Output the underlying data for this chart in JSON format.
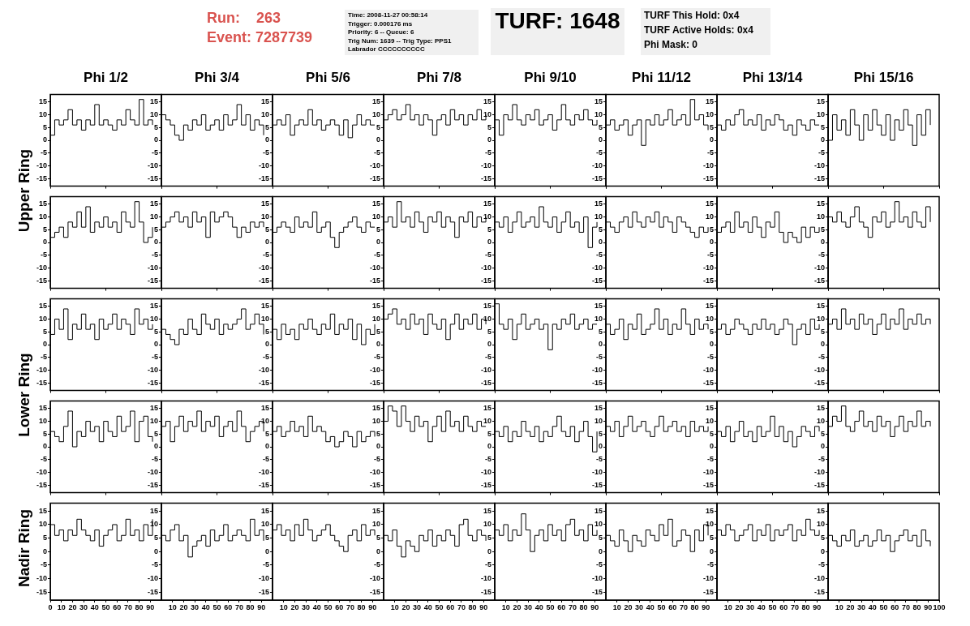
{
  "chart_data": [
    {
      "type": "step",
      "title": "Phi 1/2",
      "ylabel": "Upper Ring",
      "annotations": [
        "Run:    263",
        "Event: 7287739",
        "Time: 2008-11-27 00:58:14",
        "Trigger: 0.000176 ms",
        "Priority: 6 -- Queue: 6",
        "Trig Num: 1639 -- Trig Type: PPS1",
        "Labrador CCCCCCCCCC",
        "TURF: 1648",
        "TURF This Hold: 0x4",
        "TURF Active Holds: 0x4",
        "Phi Mask: 0"
      ],
      "color": "#000000",
      "x": [
        0,
        4,
        8,
        12,
        16,
        20,
        24,
        28,
        32,
        36,
        40,
        44,
        48,
        52,
        56,
        60,
        64,
        68,
        72,
        76,
        80,
        84,
        88,
        92
      ],
      "values": [
        2,
        8,
        6,
        8,
        12,
        6,
        8,
        4,
        8,
        6,
        14,
        6,
        8,
        6,
        4,
        8,
        6,
        12,
        8,
        6,
        16,
        6,
        8,
        6
      ],
      "xlim": [
        0,
        100
      ],
      "ylim": [
        -18,
        18
      ],
      "yticks": [
        -15,
        -10,
        -5,
        0,
        5,
        10,
        15
      ],
      "tick_labels": "y"
    },
    {
      "type": "step",
      "title": "Phi 3/4",
      "color": "#000000",
      "x": [
        0,
        4,
        8,
        12,
        16,
        20,
        24,
        28,
        32,
        36,
        40,
        44,
        48,
        52,
        56,
        60,
        64,
        68,
        72,
        76,
        80,
        84,
        88,
        92
      ],
      "values": [
        10,
        8,
        6,
        2,
        0,
        6,
        4,
        8,
        6,
        10,
        4,
        6,
        8,
        4,
        10,
        6,
        8,
        14,
        6,
        10,
        4,
        8,
        6,
        2
      ],
      "xlim": [
        0,
        100
      ],
      "ylim": [
        -18,
        18
      ],
      "yticks": [
        -15,
        -10,
        -5,
        0,
        5,
        10,
        15
      ],
      "tick_labels": "y"
    },
    {
      "type": "step",
      "title": "Phi 5/6",
      "color": "#000000",
      "x": [
        0,
        4,
        8,
        12,
        16,
        20,
        24,
        28,
        32,
        36,
        40,
        44,
        48,
        52,
        56,
        60,
        64,
        68,
        72,
        76,
        80,
        84,
        88,
        92
      ],
      "values": [
        6,
        8,
        6,
        10,
        2,
        6,
        8,
        6,
        12,
        6,
        8,
        4,
        6,
        8,
        6,
        2,
        8,
        1,
        6,
        10,
        6,
        8,
        6,
        6
      ],
      "xlim": [
        0,
        100
      ],
      "ylim": [
        -18,
        18
      ],
      "yticks": [
        -15,
        -10,
        -5,
        0,
        5,
        10,
        15
      ],
      "tick_labels": "y"
    },
    {
      "type": "step",
      "title": "Phi 7/8",
      "color": "#000000",
      "x": [
        0,
        4,
        8,
        12,
        16,
        20,
        24,
        28,
        32,
        36,
        40,
        44,
        48,
        52,
        56,
        60,
        64,
        68,
        72,
        76,
        80,
        84,
        88,
        92
      ],
      "values": [
        8,
        10,
        12,
        8,
        10,
        14,
        8,
        10,
        6,
        10,
        8,
        2,
        8,
        10,
        6,
        12,
        8,
        10,
        6,
        10,
        8,
        12,
        8,
        10
      ],
      "xlim": [
        0,
        100
      ],
      "ylim": [
        -18,
        18
      ],
      "yticks": [
        -15,
        -10,
        -5,
        0,
        5,
        10,
        15
      ],
      "tick_labels": "y"
    },
    {
      "type": "step",
      "title": "Phi 9/10",
      "color": "#000000",
      "x": [
        0,
        4,
        8,
        12,
        16,
        20,
        24,
        28,
        32,
        36,
        40,
        44,
        48,
        52,
        56,
        60,
        64,
        68,
        72,
        76,
        80,
        84,
        88,
        92
      ],
      "values": [
        8,
        2,
        10,
        8,
        14,
        8,
        6,
        10,
        8,
        12,
        6,
        8,
        10,
        4,
        8,
        14,
        8,
        6,
        10,
        8,
        12,
        8,
        6,
        8
      ],
      "xlim": [
        0,
        100
      ],
      "ylim": [
        -18,
        18
      ],
      "yticks": [
        -15,
        -10,
        -5,
        0,
        5,
        10,
        15
      ],
      "tick_labels": "y"
    },
    {
      "type": "step",
      "title": "Phi 11/12",
      "color": "#000000",
      "x": [
        0,
        4,
        8,
        12,
        16,
        20,
        24,
        28,
        32,
        36,
        40,
        44,
        48,
        52,
        56,
        60,
        64,
        68,
        72,
        76,
        80,
        84,
        88,
        92
      ],
      "values": [
        6,
        8,
        4,
        6,
        8,
        2,
        6,
        8,
        -2,
        8,
        6,
        10,
        6,
        8,
        12,
        6,
        8,
        10,
        6,
        16,
        8,
        10,
        6,
        4
      ],
      "xlim": [
        0,
        100
      ],
      "ylim": [
        -18,
        18
      ],
      "yticks": [
        -15,
        -10,
        -5,
        0,
        5,
        10,
        15
      ],
      "tick_labels": "y"
    },
    {
      "type": "step",
      "title": "Phi 13/14",
      "color": "#000000",
      "x": [
        0,
        4,
        8,
        12,
        16,
        20,
        24,
        28,
        32,
        36,
        40,
        44,
        48,
        52,
        56,
        60,
        64,
        68,
        72,
        76,
        80,
        84,
        88,
        92
      ],
      "values": [
        6,
        4,
        8,
        6,
        10,
        12,
        6,
        8,
        6,
        10,
        4,
        8,
        6,
        10,
        8,
        4,
        6,
        2,
        8,
        6,
        4,
        8,
        6,
        6
      ],
      "xlim": [
        0,
        100
      ],
      "ylim": [
        -18,
        18
      ],
      "yticks": [
        -15,
        -10,
        -5,
        0,
        5,
        10,
        15
      ],
      "tick_labels": "y"
    },
    {
      "type": "step",
      "title": "Phi 15/16",
      "color": "#000000",
      "x": [
        0,
        4,
        8,
        12,
        16,
        20,
        24,
        28,
        32,
        36,
        40,
        44,
        48,
        52,
        56,
        60,
        64,
        68,
        72,
        76,
        80,
        84,
        88,
        92
      ],
      "values": [
        0,
        10,
        4,
        8,
        2,
        12,
        6,
        0,
        10,
        4,
        12,
        6,
        2,
        10,
        0,
        8,
        4,
        12,
        6,
        -2,
        10,
        2,
        12,
        6
      ],
      "xlim": [
        0,
        100
      ],
      "ylim": [
        -18,
        18
      ],
      "yticks": [
        -15,
        -10,
        -5,
        0,
        5,
        10,
        15
      ],
      "tick_labels": "y"
    },
    {
      "type": "step",
      "color": "#000000",
      "x": [
        0,
        4,
        8,
        12,
        16,
        20,
        24,
        28,
        32,
        36,
        40,
        44,
        48,
        52,
        56,
        60,
        64,
        68,
        72,
        76,
        80,
        84,
        88,
        92
      ],
      "values": [
        2,
        4,
        6,
        2,
        8,
        6,
        12,
        6,
        14,
        4,
        8,
        6,
        10,
        6,
        8,
        4,
        12,
        8,
        6,
        16,
        8,
        0,
        2,
        6
      ],
      "xlim": [
        0,
        100
      ],
      "ylim": [
        -18,
        18
      ],
      "yticks": [
        -15,
        -10,
        -5,
        0,
        5,
        10,
        15
      ],
      "tick_labels": "y"
    },
    {
      "type": "step",
      "color": "#000000",
      "x": [
        0,
        4,
        8,
        12,
        16,
        20,
        24,
        28,
        32,
        36,
        40,
        44,
        48,
        52,
        56,
        60,
        64,
        68,
        72,
        76,
        80,
        84,
        88,
        92
      ],
      "values": [
        6,
        8,
        10,
        12,
        8,
        10,
        6,
        12,
        8,
        10,
        2,
        12,
        8,
        10,
        12,
        10,
        6,
        2,
        6,
        4,
        8,
        6,
        8,
        6
      ],
      "xlim": [
        0,
        100
      ],
      "ylim": [
        -18,
        18
      ],
      "yticks": [
        -15,
        -10,
        -5,
        0,
        5,
        10,
        15
      ],
      "tick_labels": "y"
    },
    {
      "type": "step",
      "color": "#000000",
      "x": [
        0,
        4,
        8,
        12,
        16,
        20,
        24,
        28,
        32,
        36,
        40,
        44,
        48,
        52,
        56,
        60,
        64,
        68,
        72,
        76,
        80,
        84,
        88,
        92
      ],
      "values": [
        4,
        6,
        8,
        6,
        4,
        10,
        6,
        8,
        6,
        12,
        4,
        6,
        8,
        2,
        -2,
        4,
        6,
        8,
        10,
        6,
        4,
        8,
        6,
        6
      ],
      "xlim": [
        0,
        100
      ],
      "ylim": [
        -18,
        18
      ],
      "yticks": [
        -15,
        -10,
        -5,
        0,
        5,
        10,
        15
      ],
      "tick_labels": "y"
    },
    {
      "type": "step",
      "color": "#000000",
      "x": [
        0,
        4,
        8,
        12,
        16,
        20,
        24,
        28,
        32,
        36,
        40,
        44,
        48,
        52,
        56,
        60,
        64,
        68,
        72,
        76,
        80,
        84,
        88,
        92
      ],
      "values": [
        8,
        10,
        6,
        16,
        8,
        10,
        6,
        12,
        8,
        4,
        10,
        8,
        12,
        6,
        10,
        8,
        2,
        10,
        8,
        12,
        6,
        10,
        8,
        10
      ],
      "xlim": [
        0,
        100
      ],
      "ylim": [
        -18,
        18
      ],
      "yticks": [
        -15,
        -10,
        -5,
        0,
        5,
        10,
        15
      ],
      "tick_labels": "y"
    },
    {
      "type": "step",
      "color": "#000000",
      "x": [
        0,
        4,
        8,
        12,
        16,
        20,
        24,
        28,
        32,
        36,
        40,
        44,
        48,
        52,
        56,
        60,
        64,
        68,
        72,
        76,
        80,
        84,
        88,
        92
      ],
      "values": [
        8,
        6,
        10,
        4,
        8,
        12,
        6,
        8,
        10,
        6,
        14,
        8,
        6,
        10,
        4,
        8,
        12,
        6,
        8,
        4,
        10,
        -2,
        6,
        8
      ],
      "xlim": [
        0,
        100
      ],
      "ylim": [
        -18,
        18
      ],
      "yticks": [
        -15,
        -10,
        -5,
        0,
        5,
        10,
        15
      ],
      "tick_labels": "y"
    },
    {
      "type": "step",
      "color": "#000000",
      "x": [
        0,
        4,
        8,
        12,
        16,
        20,
        24,
        28,
        32,
        36,
        40,
        44,
        48,
        52,
        56,
        60,
        64,
        68,
        72,
        76,
        80,
        84,
        88,
        92
      ],
      "values": [
        8,
        6,
        4,
        8,
        10,
        6,
        12,
        8,
        6,
        10,
        8,
        12,
        6,
        10,
        8,
        4,
        10,
        8,
        6,
        4,
        2,
        6,
        4,
        6
      ],
      "xlim": [
        0,
        100
      ],
      "ylim": [
        -18,
        18
      ],
      "yticks": [
        -15,
        -10,
        -5,
        0,
        5,
        10,
        15
      ],
      "tick_labels": "y"
    },
    {
      "type": "step",
      "color": "#000000",
      "x": [
        0,
        4,
        8,
        12,
        16,
        20,
        24,
        28,
        32,
        36,
        40,
        44,
        48,
        52,
        56,
        60,
        64,
        68,
        72,
        76,
        80,
        84,
        88,
        92
      ],
      "values": [
        4,
        6,
        8,
        4,
        12,
        6,
        8,
        4,
        10,
        6,
        2,
        8,
        6,
        12,
        4,
        0,
        4,
        2,
        0,
        6,
        2,
        6,
        4,
        6
      ],
      "xlim": [
        0,
        100
      ],
      "ylim": [
        -18,
        18
      ],
      "yticks": [
        -15,
        -10,
        -5,
        0,
        5,
        10,
        15
      ],
      "tick_labels": "y"
    },
    {
      "type": "step",
      "color": "#000000",
      "x": [
        0,
        4,
        8,
        12,
        16,
        20,
        24,
        28,
        32,
        36,
        40,
        44,
        48,
        52,
        56,
        60,
        64,
        68,
        72,
        76,
        80,
        84,
        88,
        92
      ],
      "values": [
        10,
        8,
        12,
        8,
        6,
        10,
        14,
        8,
        6,
        2,
        10,
        8,
        12,
        6,
        8,
        16,
        8,
        10,
        6,
        12,
        8,
        6,
        14,
        8
      ],
      "xlim": [
        0,
        100
      ],
      "ylim": [
        -18,
        18
      ],
      "yticks": [
        -15,
        -10,
        -5,
        0,
        5,
        10,
        15
      ],
      "tick_labels": "y"
    },
    {
      "type": "step",
      "ylabel": "Lower Ring",
      "color": "#000000",
      "x": [
        0,
        4,
        8,
        12,
        16,
        20,
        24,
        28,
        32,
        36,
        40,
        44,
        48,
        52,
        56,
        60,
        64,
        68,
        72,
        76,
        80,
        84,
        88,
        92
      ],
      "values": [
        4,
        10,
        6,
        14,
        2,
        8,
        6,
        12,
        6,
        8,
        2,
        10,
        6,
        8,
        12,
        6,
        10,
        8,
        4,
        14,
        8,
        10,
        6,
        8
      ],
      "xlim": [
        0,
        100
      ],
      "ylim": [
        -18,
        18
      ],
      "yticks": [
        -15,
        -10,
        -5,
        0,
        5,
        10,
        15
      ],
      "tick_labels": "y"
    },
    {
      "type": "step",
      "color": "#000000",
      "x": [
        0,
        4,
        8,
        12,
        16,
        20,
        24,
        28,
        32,
        36,
        40,
        44,
        48,
        52,
        56,
        60,
        64,
        68,
        72,
        76,
        80,
        84,
        88,
        92
      ],
      "values": [
        6,
        4,
        2,
        0,
        6,
        4,
        10,
        6,
        4,
        12,
        8,
        6,
        10,
        4,
        8,
        6,
        8,
        10,
        14,
        6,
        8,
        12,
        8,
        4
      ],
      "xlim": [
        0,
        100
      ],
      "ylim": [
        -18,
        18
      ],
      "yticks": [
        -15,
        -10,
        -5,
        0,
        5,
        10,
        15
      ],
      "tick_labels": "y"
    },
    {
      "type": "step",
      "color": "#000000",
      "x": [
        0,
        4,
        8,
        12,
        16,
        20,
        24,
        28,
        32,
        36,
        40,
        44,
        48,
        52,
        56,
        60,
        64,
        68,
        72,
        76,
        80,
        84,
        88,
        92
      ],
      "values": [
        6,
        2,
        8,
        4,
        6,
        2,
        8,
        6,
        10,
        6,
        4,
        8,
        6,
        12,
        4,
        8,
        6,
        10,
        2,
        8,
        0,
        6,
        4,
        8
      ],
      "xlim": [
        0,
        100
      ],
      "ylim": [
        -18,
        18
      ],
      "yticks": [
        -15,
        -10,
        -5,
        0,
        5,
        10,
        15
      ],
      "tick_labels": "y"
    },
    {
      "type": "step",
      "color": "#000000",
      "x": [
        0,
        4,
        8,
        12,
        16,
        20,
        24,
        28,
        32,
        36,
        40,
        44,
        48,
        52,
        56,
        60,
        64,
        68,
        72,
        76,
        80,
        84,
        88,
        92
      ],
      "values": [
        10,
        12,
        14,
        8,
        10,
        6,
        12,
        8,
        10,
        4,
        12,
        8,
        6,
        10,
        2,
        8,
        12,
        6,
        10,
        8,
        12,
        6,
        10,
        8
      ],
      "xlim": [
        0,
        100
      ],
      "ylim": [
        -18,
        18
      ],
      "yticks": [
        -15,
        -10,
        -5,
        0,
        5,
        10,
        15
      ],
      "tick_labels": "y"
    },
    {
      "type": "step",
      "color": "#000000",
      "x": [
        0,
        4,
        8,
        12,
        16,
        20,
        24,
        28,
        32,
        36,
        40,
        44,
        48,
        52,
        56,
        60,
        64,
        68,
        72,
        76,
        80,
        84,
        88,
        92
      ],
      "values": [
        16,
        8,
        6,
        10,
        2,
        8,
        12,
        6,
        8,
        10,
        6,
        8,
        -2,
        8,
        6,
        10,
        8,
        12,
        6,
        8,
        10,
        6,
        8,
        8
      ],
      "xlim": [
        0,
        100
      ],
      "ylim": [
        -18,
        18
      ],
      "yticks": [
        -15,
        -10,
        -5,
        0,
        5,
        10,
        15
      ],
      "tick_labels": "y"
    },
    {
      "type": "step",
      "color": "#000000",
      "x": [
        0,
        4,
        8,
        12,
        16,
        20,
        24,
        28,
        32,
        36,
        40,
        44,
        48,
        52,
        56,
        60,
        64,
        68,
        72,
        76,
        80,
        84,
        88,
        92
      ],
      "values": [
        8,
        4,
        6,
        10,
        2,
        8,
        6,
        12,
        4,
        6,
        8,
        14,
        6,
        10,
        4,
        8,
        6,
        14,
        8,
        4,
        10,
        6,
        8,
        6
      ],
      "xlim": [
        0,
        100
      ],
      "ylim": [
        -18,
        18
      ],
      "yticks": [
        -15,
        -10,
        -5,
        0,
        5,
        10,
        15
      ],
      "tick_labels": "y"
    },
    {
      "type": "step",
      "color": "#000000",
      "x": [
        0,
        4,
        8,
        12,
        16,
        20,
        24,
        28,
        32,
        36,
        40,
        44,
        48,
        52,
        56,
        60,
        64,
        68,
        72,
        76,
        80,
        84,
        88,
        92
      ],
      "values": [
        6,
        8,
        4,
        6,
        10,
        8,
        6,
        4,
        8,
        6,
        10,
        6,
        8,
        4,
        6,
        10,
        8,
        0,
        6,
        8,
        4,
        10,
        6,
        8
      ],
      "xlim": [
        0,
        100
      ],
      "ylim": [
        -18,
        18
      ],
      "yticks": [
        -15,
        -10,
        -5,
        0,
        5,
        10,
        15
      ],
      "tick_labels": "y"
    },
    {
      "type": "step",
      "color": "#000000",
      "x": [
        0,
        4,
        8,
        12,
        16,
        20,
        24,
        28,
        32,
        36,
        40,
        44,
        48,
        52,
        56,
        60,
        64,
        68,
        72,
        76,
        80,
        84,
        88,
        92
      ],
      "values": [
        8,
        10,
        6,
        14,
        8,
        10,
        6,
        12,
        8,
        10,
        4,
        8,
        12,
        6,
        10,
        8,
        14,
        6,
        10,
        8,
        12,
        8,
        10,
        8
      ],
      "xlim": [
        0,
        100
      ],
      "ylim": [
        -18,
        18
      ],
      "yticks": [
        -15,
        -10,
        -5,
        0,
        5,
        10,
        15
      ],
      "tick_labels": "y"
    },
    {
      "type": "step",
      "color": "#000000",
      "x": [
        0,
        4,
        8,
        12,
        16,
        20,
        24,
        28,
        32,
        36,
        40,
        44,
        48,
        52,
        56,
        60,
        64,
        68,
        72,
        76,
        80,
        84,
        88,
        92
      ],
      "values": [
        6,
        4,
        2,
        8,
        14,
        0,
        6,
        4,
        10,
        6,
        8,
        2,
        10,
        6,
        4,
        12,
        6,
        8,
        14,
        2,
        10,
        12,
        4,
        2
      ],
      "xlim": [
        0,
        100
      ],
      "ylim": [
        -18,
        18
      ],
      "yticks": [
        -15,
        -10,
        -5,
        0,
        5,
        10,
        15
      ],
      "tick_labels": "y"
    },
    {
      "type": "step",
      "color": "#000000",
      "x": [
        0,
        4,
        8,
        12,
        16,
        20,
        24,
        28,
        32,
        36,
        40,
        44,
        48,
        52,
        56,
        60,
        64,
        68,
        72,
        76,
        80,
        84,
        88,
        92
      ],
      "values": [
        8,
        10,
        2,
        8,
        12,
        6,
        10,
        8,
        14,
        6,
        10,
        8,
        12,
        4,
        8,
        10,
        6,
        14,
        8,
        2,
        6,
        8,
        10,
        6
      ],
      "xlim": [
        0,
        100
      ],
      "ylim": [
        -18,
        18
      ],
      "yticks": [
        -15,
        -10,
        -5,
        0,
        5,
        10,
        15
      ],
      "tick_labels": "y"
    },
    {
      "type": "step",
      "color": "#000000",
      "x": [
        0,
        4,
        8,
        12,
        16,
        20,
        24,
        28,
        32,
        36,
        40,
        44,
        48,
        52,
        56,
        60,
        64,
        68,
        72,
        76,
        80,
        84,
        88,
        92
      ],
      "values": [
        6,
        8,
        4,
        6,
        10,
        6,
        8,
        4,
        12,
        6,
        8,
        6,
        2,
        4,
        0,
        2,
        6,
        4,
        0,
        6,
        2,
        4,
        6,
        4
      ],
      "xlim": [
        0,
        100
      ],
      "ylim": [
        -18,
        18
      ],
      "yticks": [
        -15,
        -10,
        -5,
        0,
        5,
        10,
        15
      ],
      "tick_labels": "y"
    },
    {
      "type": "step",
      "color": "#000000",
      "x": [
        0,
        4,
        8,
        12,
        16,
        20,
        24,
        28,
        32,
        36,
        40,
        44,
        48,
        52,
        56,
        60,
        64,
        68,
        72,
        76,
        80,
        84,
        88,
        92
      ],
      "values": [
        10,
        16,
        14,
        8,
        16,
        10,
        6,
        12,
        8,
        10,
        2,
        8,
        12,
        6,
        14,
        8,
        10,
        6,
        12,
        8,
        6,
        10,
        8,
        8
      ],
      "xlim": [
        0,
        100
      ],
      "ylim": [
        -18,
        18
      ],
      "yticks": [
        -15,
        -10,
        -5,
        0,
        5,
        10,
        15
      ],
      "tick_labels": "y"
    },
    {
      "type": "step",
      "color": "#000000",
      "x": [
        0,
        4,
        8,
        12,
        16,
        20,
        24,
        28,
        32,
        36,
        40,
        44,
        48,
        52,
        56,
        60,
        64,
        68,
        72,
        76,
        80,
        84,
        88,
        92
      ],
      "values": [
        6,
        4,
        8,
        2,
        6,
        4,
        10,
        6,
        4,
        8,
        2,
        6,
        4,
        8,
        12,
        6,
        4,
        8,
        2,
        6,
        10,
        4,
        -2,
        6
      ],
      "xlim": [
        0,
        100
      ],
      "ylim": [
        -18,
        18
      ],
      "yticks": [
        -15,
        -10,
        -5,
        0,
        5,
        10,
        15
      ],
      "tick_labels": "y"
    },
    {
      "type": "step",
      "color": "#000000",
      "x": [
        0,
        4,
        8,
        12,
        16,
        20,
        24,
        28,
        32,
        36,
        40,
        44,
        48,
        52,
        56,
        60,
        64,
        68,
        72,
        76,
        80,
        84,
        88,
        92
      ],
      "values": [
        8,
        6,
        10,
        4,
        8,
        12,
        6,
        8,
        10,
        6,
        4,
        8,
        12,
        6,
        8,
        10,
        6,
        8,
        4,
        10,
        6,
        8,
        6,
        8
      ],
      "xlim": [
        0,
        100
      ],
      "ylim": [
        -18,
        18
      ],
      "yticks": [
        -15,
        -10,
        -5,
        0,
        5,
        10,
        15
      ],
      "tick_labels": "y"
    },
    {
      "type": "step",
      "color": "#000000",
      "x": [
        0,
        4,
        8,
        12,
        16,
        20,
        24,
        28,
        32,
        36,
        40,
        44,
        48,
        52,
        56,
        60,
        64,
        68,
        72,
        76,
        80,
        84,
        88,
        92
      ],
      "values": [
        6,
        4,
        8,
        2,
        6,
        10,
        4,
        6,
        2,
        8,
        4,
        6,
        12,
        4,
        8,
        2,
        6,
        0,
        4,
        8,
        6,
        4,
        8,
        6
      ],
      "xlim": [
        0,
        100
      ],
      "ylim": [
        -18,
        18
      ],
      "yticks": [
        -15,
        -10,
        -5,
        0,
        5,
        10,
        15
      ],
      "tick_labels": "y"
    },
    {
      "type": "step",
      "color": "#000000",
      "x": [
        0,
        4,
        8,
        12,
        16,
        20,
        24,
        28,
        32,
        36,
        40,
        44,
        48,
        52,
        56,
        60,
        64,
        68,
        72,
        76,
        80,
        84,
        88,
        92
      ],
      "values": [
        8,
        12,
        10,
        16,
        8,
        6,
        10,
        14,
        8,
        10,
        6,
        12,
        8,
        10,
        4,
        8,
        12,
        6,
        10,
        8,
        14,
        8,
        10,
        8
      ],
      "xlim": [
        0,
        100
      ],
      "ylim": [
        -18,
        18
      ],
      "yticks": [
        -15,
        -10,
        -5,
        0,
        5,
        10,
        15
      ],
      "tick_labels": "y"
    },
    {
      "type": "step",
      "ylabel": "Nadir Ring",
      "color": "#000000",
      "x": [
        0,
        4,
        8,
        12,
        16,
        20,
        24,
        28,
        32,
        36,
        40,
        44,
        48,
        52,
        56,
        60,
        64,
        68,
        72,
        76,
        80,
        84,
        88,
        92
      ],
      "values": [
        10,
        6,
        8,
        4,
        8,
        6,
        12,
        8,
        6,
        4,
        8,
        2,
        6,
        8,
        10,
        4,
        6,
        12,
        6,
        8,
        4,
        10,
        6,
        12
      ],
      "xlim": [
        0,
        100
      ],
      "ylim": [
        -18,
        18
      ],
      "yticks": [
        -15,
        -10,
        -5,
        0,
        5,
        10,
        15
      ],
      "xticks": [
        0,
        10,
        20,
        30,
        40,
        50,
        60,
        70,
        80,
        90
      ]
    },
    {
      "type": "step",
      "color": "#000000",
      "x": [
        0,
        4,
        8,
        12,
        16,
        20,
        24,
        28,
        32,
        36,
        40,
        44,
        48,
        52,
        56,
        60,
        64,
        68,
        72,
        76,
        80,
        84,
        88,
        92
      ],
      "values": [
        6,
        4,
        8,
        10,
        4,
        6,
        -2,
        2,
        4,
        6,
        2,
        8,
        4,
        6,
        10,
        4,
        6,
        8,
        6,
        4,
        12,
        6,
        8,
        4
      ],
      "xlim": [
        0,
        100
      ],
      "ylim": [
        -18,
        18
      ],
      "yticks": [
        -15,
        -10,
        -5,
        0,
        5,
        10,
        15
      ],
      "xticks": [
        10,
        20,
        30,
        40,
        50,
        60,
        70,
        80,
        90
      ]
    },
    {
      "type": "step",
      "color": "#000000",
      "x": [
        0,
        4,
        8,
        12,
        16,
        20,
        24,
        28,
        32,
        36,
        40,
        44,
        48,
        52,
        56,
        60,
        64,
        68,
        72,
        76,
        80,
        84,
        88,
        92
      ],
      "values": [
        8,
        10,
        6,
        8,
        4,
        10,
        6,
        12,
        8,
        4,
        6,
        8,
        10,
        6,
        4,
        2,
        0,
        6,
        8,
        4,
        10,
        6,
        8,
        6
      ],
      "xlim": [
        0,
        100
      ],
      "ylim": [
        -18,
        18
      ],
      "yticks": [
        -15,
        -10,
        -5,
        0,
        5,
        10,
        15
      ],
      "xticks": [
        10,
        20,
        30,
        40,
        50,
        60,
        70,
        80,
        90
      ]
    },
    {
      "type": "step",
      "color": "#000000",
      "x": [
        0,
        4,
        8,
        12,
        16,
        20,
        24,
        28,
        32,
        36,
        40,
        44,
        48,
        52,
        56,
        60,
        64,
        68,
        72,
        76,
        80,
        84,
        88,
        92
      ],
      "values": [
        6,
        4,
        8,
        2,
        -2,
        4,
        2,
        0,
        6,
        4,
        8,
        2,
        6,
        4,
        8,
        6,
        2,
        10,
        12,
        6,
        4,
        8,
        6,
        4
      ],
      "xlim": [
        0,
        100
      ],
      "ylim": [
        -18,
        18
      ],
      "yticks": [
        -15,
        -10,
        -5,
        0,
        5,
        10,
        15
      ],
      "xticks": [
        10,
        20,
        30,
        40,
        50,
        60,
        70,
        80,
        90
      ]
    },
    {
      "type": "step",
      "color": "#000000",
      "x": [
        0,
        4,
        8,
        12,
        16,
        20,
        24,
        28,
        32,
        36,
        40,
        44,
        48,
        52,
        56,
        60,
        64,
        68,
        72,
        76,
        80,
        84,
        88,
        92
      ],
      "values": [
        8,
        6,
        10,
        4,
        8,
        6,
        14,
        8,
        0,
        6,
        8,
        4,
        10,
        6,
        8,
        4,
        10,
        12,
        6,
        8,
        4,
        10,
        6,
        8
      ],
      "xlim": [
        0,
        100
      ],
      "ylim": [
        -18,
        18
      ],
      "yticks": [
        -15,
        -10,
        -5,
        0,
        5,
        10,
        15
      ],
      "xticks": [
        10,
        20,
        30,
        40,
        50,
        60,
        70,
        80,
        90
      ]
    },
    {
      "type": "step",
      "color": "#000000",
      "x": [
        0,
        4,
        8,
        12,
        16,
        20,
        24,
        28,
        32,
        36,
        40,
        44,
        48,
        52,
        56,
        60,
        64,
        68,
        72,
        76,
        80,
        84,
        88,
        92
      ],
      "values": [
        6,
        4,
        2,
        8,
        4,
        0,
        6,
        4,
        2,
        8,
        6,
        4,
        10,
        6,
        12,
        2,
        4,
        8,
        6,
        0,
        8,
        4,
        10,
        6
      ],
      "xlim": [
        0,
        100
      ],
      "ylim": [
        -18,
        18
      ],
      "yticks": [
        -15,
        -10,
        -5,
        0,
        5,
        10,
        15
      ],
      "xticks": [
        10,
        20,
        30,
        40,
        50,
        60,
        70,
        80,
        90
      ]
    },
    {
      "type": "step",
      "color": "#000000",
      "x": [
        0,
        4,
        8,
        12,
        16,
        20,
        24,
        28,
        32,
        36,
        40,
        44,
        48,
        52,
        56,
        60,
        64,
        68,
        72,
        76,
        80,
        84,
        88,
        92
      ],
      "values": [
        8,
        6,
        10,
        8,
        4,
        6,
        8,
        10,
        4,
        8,
        6,
        10,
        4,
        8,
        6,
        8,
        10,
        4,
        8,
        6,
        12,
        8,
        6,
        8
      ],
      "xlim": [
        0,
        100
      ],
      "ylim": [
        -18,
        18
      ],
      "yticks": [
        -15,
        -10,
        -5,
        0,
        5,
        10,
        15
      ],
      "xticks": [
        10,
        20,
        30,
        40,
        50,
        60,
        70,
        80,
        90
      ]
    },
    {
      "type": "step",
      "color": "#000000",
      "x": [
        0,
        4,
        8,
        12,
        16,
        20,
        24,
        28,
        32,
        36,
        40,
        44,
        48,
        52,
        56,
        60,
        64,
        68,
        72,
        76,
        80,
        84,
        88,
        92
      ],
      "values": [
        6,
        4,
        2,
        6,
        4,
        8,
        2,
        4,
        6,
        2,
        4,
        8,
        4,
        6,
        0,
        4,
        6,
        8,
        4,
        6,
        2,
        8,
        4,
        2
      ],
      "xlim": [
        0,
        100
      ],
      "ylim": [
        -18,
        18
      ],
      "yticks": [
        -15,
        -10,
        -5,
        0,
        5,
        10,
        15
      ],
      "xticks": [
        10,
        20,
        30,
        40,
        50,
        60,
        70,
        80,
        90,
        100
      ]
    }
  ]
}
